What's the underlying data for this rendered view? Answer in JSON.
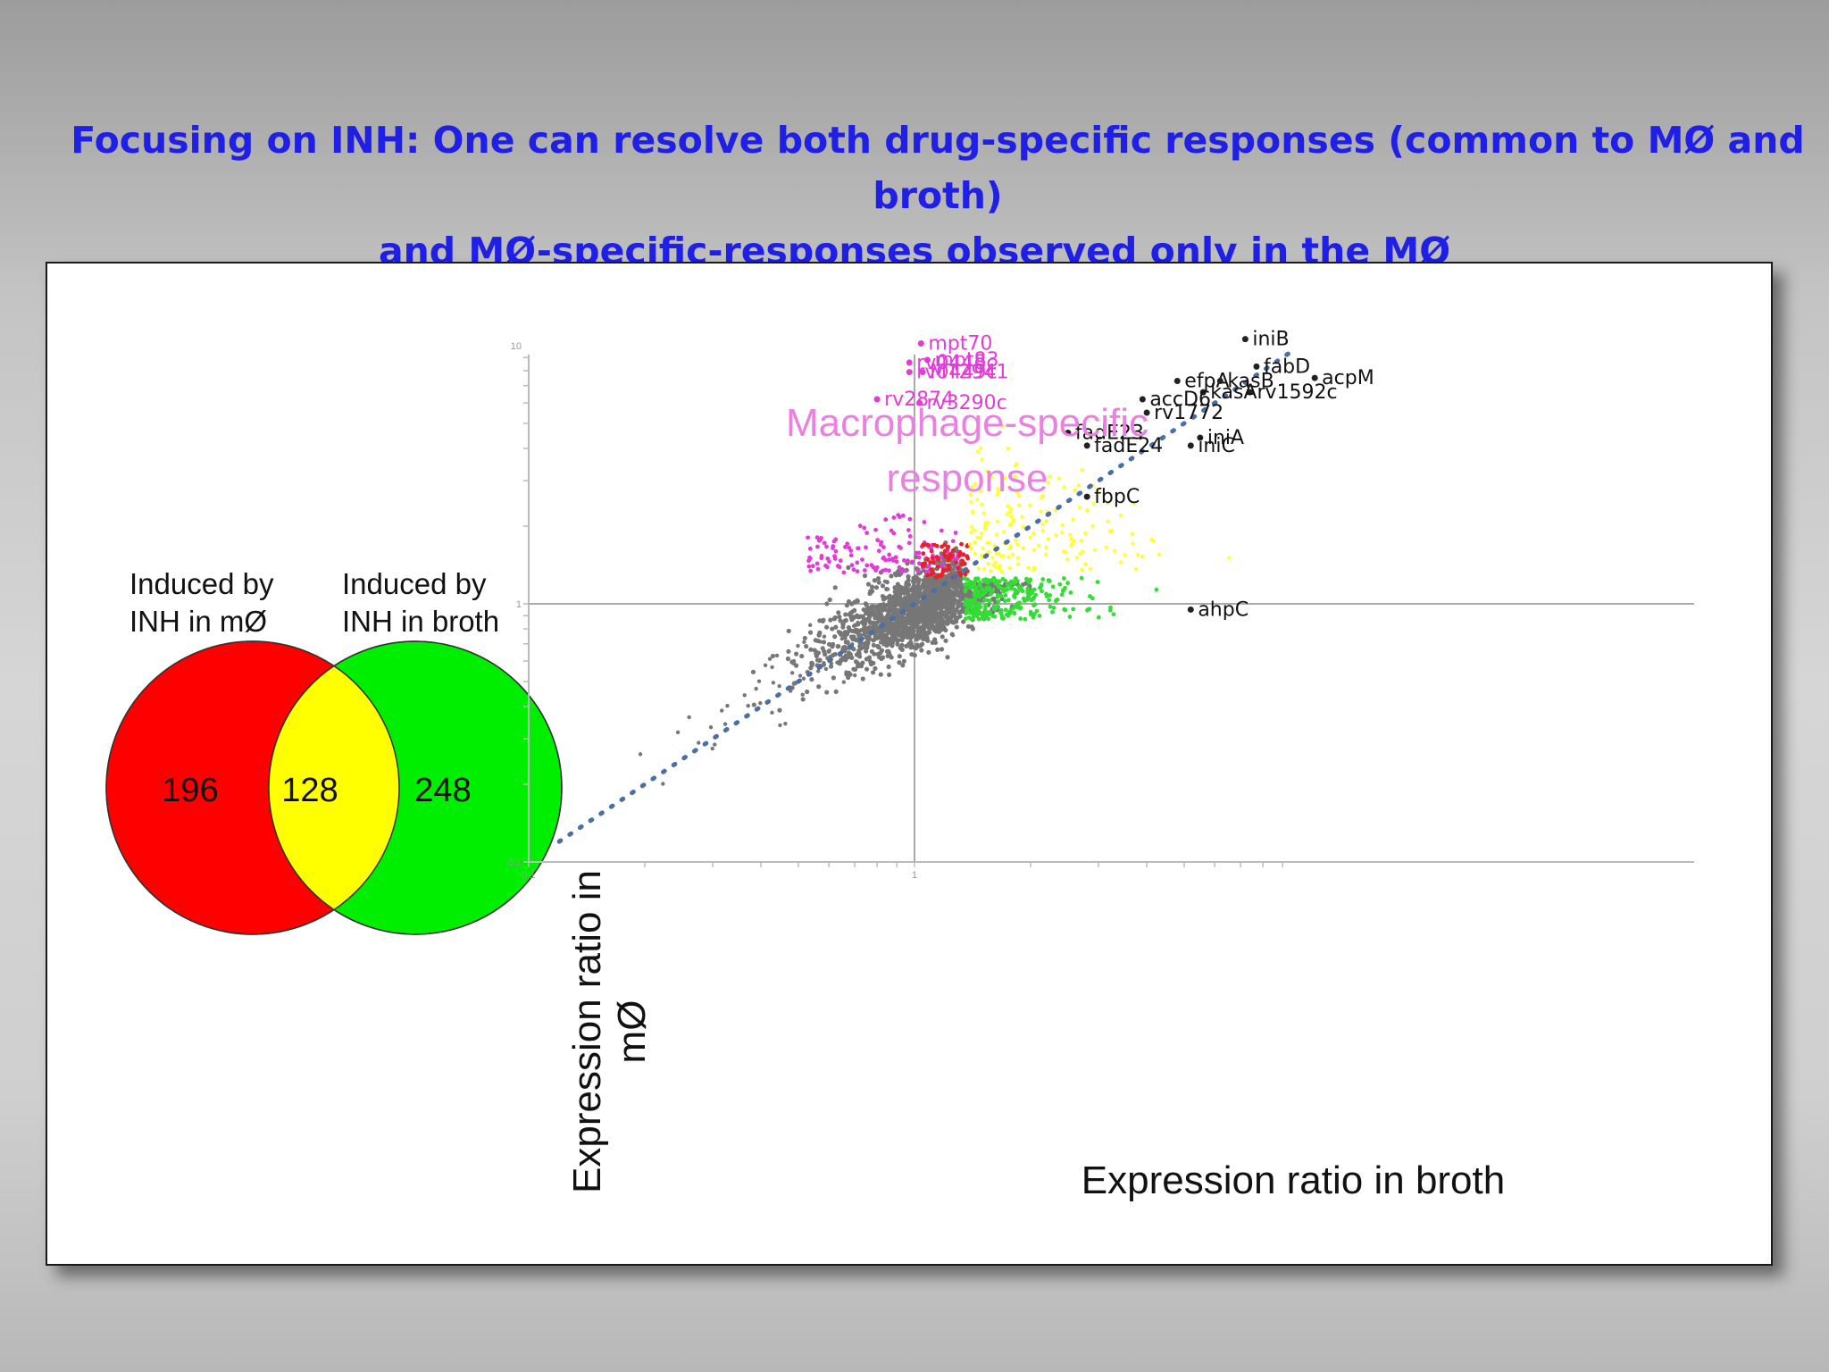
{
  "title": {
    "line1": "Focusing on INH:  One can resolve both drug-specific responses (common to MØ and broth)",
    "line2": "and MØ-specific-responses observed only in the MØ"
  },
  "venn": {
    "left_label_1": "Induced by",
    "left_label_2": "INH in mØ",
    "right_label_1": "Induced by",
    "right_label_2": "INH in broth",
    "left_only": "196",
    "overlap": "128",
    "right_only": "248",
    "colors": {
      "left": "#ff0000",
      "right": "#00ee00",
      "overlap": "#ffff00"
    }
  },
  "chart_data": {
    "type": "scatter",
    "xlabel": "Expression ratio in broth",
    "ylabel": "Expression ratio in mØ",
    "scale": "log",
    "xlim": [
      0.1,
      10
    ],
    "ylim": [
      0.1,
      10
    ],
    "ticks": [
      "0.1",
      "1",
      "10"
    ],
    "annotation": "Macrophage-specific response",
    "diagonal": "dotted y = x",
    "colors": {
      "other": "#777777",
      "mo_specific": "#e23bd8",
      "common": "#ffff33",
      "broth_specific": "#33dd33",
      "strong_common": "#e8202a"
    },
    "labeled_genes_macrophage": [
      {
        "name": "mpt70",
        "x": 1.04,
        "y": 10.2
      },
      {
        "name": "mpt83",
        "x": 1.08,
        "y": 8.8
      },
      {
        "name": "rv0448c",
        "x": 0.97,
        "y": 8.6
      },
      {
        "name": "rv0449c",
        "x": 0.97,
        "y": 7.9
      },
      {
        "name": "MT2941",
        "x": 1.05,
        "y": 7.9
      },
      {
        "name": "rv2874",
        "x": 0.8,
        "y": 6.2
      },
      {
        "name": "rv3290c",
        "x": 1.03,
        "y": 6.0
      }
    ],
    "labeled_genes_common": [
      {
        "name": "iniB",
        "x": 7.2,
        "y": 10.6
      },
      {
        "name": "fabD",
        "x": 7.7,
        "y": 8.3
      },
      {
        "name": "acpM",
        "x": 10.9,
        "y": 7.5
      },
      {
        "name": "efpA",
        "x": 4.8,
        "y": 7.3
      },
      {
        "name": "kasB",
        "x": 6.2,
        "y": 7.3
      },
      {
        "name": "rv1592c",
        "x": 7.4,
        "y": 6.6
      },
      {
        "name": "kasA",
        "x": 5.6,
        "y": 6.6
      },
      {
        "name": "accD6",
        "x": 3.9,
        "y": 6.2
      },
      {
        "name": "rv1772",
        "x": 4.0,
        "y": 5.5
      },
      {
        "name": "fadE23",
        "x": 2.5,
        "y": 4.6
      },
      {
        "name": "iniA",
        "x": 5.5,
        "y": 4.4
      },
      {
        "name": "fadE24",
        "x": 2.8,
        "y": 4.1
      },
      {
        "name": "iniC",
        "x": 5.2,
        "y": 4.1
      },
      {
        "name": "fbpC",
        "x": 2.8,
        "y": 2.6
      },
      {
        "name": "ahpC",
        "x": 5.2,
        "y": 0.95
      }
    ]
  }
}
